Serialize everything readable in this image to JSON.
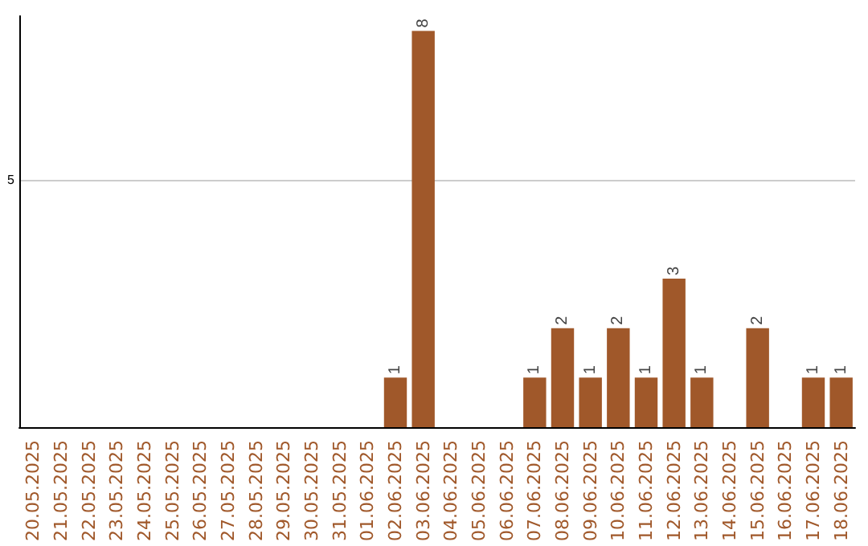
{
  "chart_data": {
    "type": "bar",
    "categories": [
      "20.05.2025",
      "21.05.2025",
      "22.05.2025",
      "23.05.2025",
      "24.05.2025",
      "25.05.2025",
      "26.05.2025",
      "27.05.2025",
      "28.05.2025",
      "29.05.2025",
      "30.05.2025",
      "31.05.2025",
      "01.06.2025",
      "02.06.2025",
      "03.06.2025",
      "04.06.2025",
      "05.06.2025",
      "06.06.2025",
      "07.06.2025",
      "08.06.2025",
      "09.06.2025",
      "10.06.2025",
      "11.06.2025",
      "12.06.2025",
      "13.06.2025",
      "14.06.2025",
      "15.06.2025",
      "16.06.2025",
      "17.06.2025",
      "18.06.2025"
    ],
    "values": [
      null,
      null,
      null,
      null,
      null,
      null,
      null,
      null,
      null,
      null,
      null,
      null,
      null,
      1,
      8,
      null,
      null,
      null,
      1,
      2,
      1,
      2,
      1,
      3,
      1,
      null,
      2,
      null,
      1,
      1
    ],
    "color": "#a0582a",
    "ylim": [
      0,
      8.3
    ],
    "yticks": [
      5
    ],
    "grid": "y",
    "data_labels": true
  }
}
